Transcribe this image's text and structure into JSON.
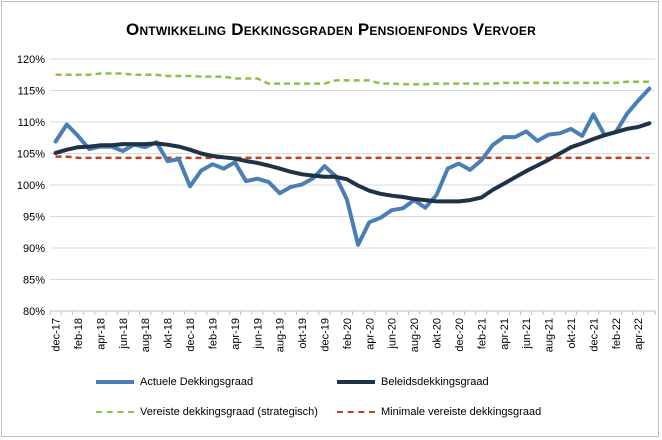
{
  "chart_data": {
    "type": "line",
    "title": "Ontwikkeling Dekkingsgraden Pensioenfonds Vervoer",
    "xlabel": "",
    "ylabel": "",
    "ylim": [
      80,
      120
    ],
    "yticks": [
      "80%",
      "85%",
      "90%",
      "95%",
      "100%",
      "105%",
      "110%",
      "115%",
      "120%"
    ],
    "grid": "horizontal",
    "legend_position": "bottom",
    "x_labels": [
      "dec-17",
      "feb-18",
      "apr-18",
      "jun-18",
      "aug-18",
      "okt-18",
      "dec-18",
      "feb-19",
      "apr-19",
      "jun-19",
      "aug-19",
      "okt-19",
      "dec-19",
      "feb-20",
      "apr-20",
      "jun-20",
      "aug-20",
      "okt-20",
      "dec-20",
      "feb-21",
      "apr-21",
      "jun-21",
      "aug-21",
      "okt-21",
      "dec-21",
      "feb-22",
      "apr-22"
    ],
    "x": [
      "dec-17",
      "jan-18",
      "feb-18",
      "mrt-18",
      "apr-18",
      "mei-18",
      "jun-18",
      "jul-18",
      "aug-18",
      "sep-18",
      "okt-18",
      "nov-18",
      "dec-18",
      "jan-19",
      "feb-19",
      "mrt-19",
      "apr-19",
      "mei-19",
      "jun-19",
      "jul-19",
      "aug-19",
      "sep-19",
      "okt-19",
      "nov-19",
      "dec-19",
      "jan-20",
      "feb-20",
      "mrt-20",
      "apr-20",
      "mei-20",
      "jun-20",
      "jul-20",
      "aug-20",
      "sep-20",
      "okt-20",
      "nov-20",
      "dec-20",
      "jan-21",
      "feb-21",
      "mrt-21",
      "apr-21",
      "mei-21",
      "jun-21",
      "jul-21",
      "aug-21",
      "sep-21",
      "okt-21",
      "nov-21",
      "dec-21",
      "jan-22",
      "feb-22",
      "mrt-22",
      "apr-22",
      "mei-22"
    ],
    "series": [
      {
        "name": "Actuele Dekkingsgraad",
        "color": "#4a7fb5",
        "style": "solid-thick",
        "values": [
          106.9,
          109.6,
          107.8,
          105.7,
          106.1,
          106.1,
          105.4,
          106.4,
          106.0,
          106.8,
          103.8,
          104.1,
          99.8,
          102.3,
          103.3,
          102.6,
          103.6,
          100.6,
          101.0,
          100.5,
          98.7,
          99.7,
          100.1,
          101.1,
          103.0,
          101.4,
          97.7,
          90.5,
          94.1,
          94.8,
          96.0,
          96.3,
          97.6,
          96.4,
          98.4,
          102.6,
          103.4,
          102.4,
          103.9,
          106.3,
          107.6,
          107.6,
          108.5,
          107.0,
          108.0,
          108.2,
          108.9,
          107.8,
          111.2,
          107.9,
          108.4,
          111.3,
          113.4,
          115.3
        ]
      },
      {
        "name": "Beleidsdekkingsgraad",
        "color": "#1f3347",
        "style": "solid-thick",
        "values": [
          105.1,
          105.6,
          106.0,
          106.1,
          106.3,
          106.3,
          106.5,
          106.5,
          106.5,
          106.6,
          106.4,
          106.1,
          105.6,
          105.0,
          104.6,
          104.4,
          104.2,
          103.8,
          103.5,
          103.1,
          102.6,
          102.1,
          101.7,
          101.5,
          101.3,
          101.3,
          100.9,
          99.9,
          99.1,
          98.6,
          98.3,
          98.1,
          97.8,
          97.6,
          97.4,
          97.4,
          97.4,
          97.6,
          98.0,
          99.2,
          100.2,
          101.2,
          102.2,
          103.1,
          104.0,
          105.0,
          106.0,
          106.6,
          107.3,
          107.9,
          108.4,
          108.9,
          109.2,
          109.8
        ]
      },
      {
        "name": "Vereiste dekkingsgraad (strategisch)",
        "color": "#8dbf4a",
        "style": "dashed",
        "values": [
          117.5,
          117.5,
          117.5,
          117.5,
          117.7,
          117.7,
          117.7,
          117.5,
          117.5,
          117.5,
          117.3,
          117.3,
          117.3,
          117.2,
          117.2,
          117.2,
          116.9,
          116.9,
          116.9,
          116.1,
          116.1,
          116.1,
          116.1,
          116.1,
          116.1,
          116.6,
          116.6,
          116.6,
          116.6,
          116.1,
          116.1,
          116.0,
          116.0,
          116.0,
          116.1,
          116.1,
          116.1,
          116.1,
          116.1,
          116.1,
          116.2,
          116.2,
          116.2,
          116.2,
          116.2,
          116.2,
          116.2,
          116.2,
          116.2,
          116.2,
          116.2,
          116.4,
          116.4,
          116.4
        ]
      },
      {
        "name": "Minimale vereiste dekkingsgraad",
        "color": "#c0401f",
        "style": "dashed",
        "values": [
          104.5,
          104.5,
          104.3,
          104.3,
          104.3,
          104.3,
          104.3,
          104.3,
          104.3,
          104.3,
          104.3,
          104.3,
          104.3,
          104.3,
          104.3,
          104.3,
          104.3,
          104.3,
          104.3,
          104.3,
          104.3,
          104.3,
          104.3,
          104.3,
          104.3,
          104.3,
          104.3,
          104.3,
          104.3,
          104.3,
          104.3,
          104.3,
          104.3,
          104.3,
          104.3,
          104.3,
          104.3,
          104.3,
          104.3,
          104.3,
          104.3,
          104.3,
          104.3,
          104.3,
          104.3,
          104.3,
          104.3,
          104.3,
          104.3,
          104.3,
          104.3,
          104.3,
          104.3,
          104.3
        ]
      }
    ]
  }
}
